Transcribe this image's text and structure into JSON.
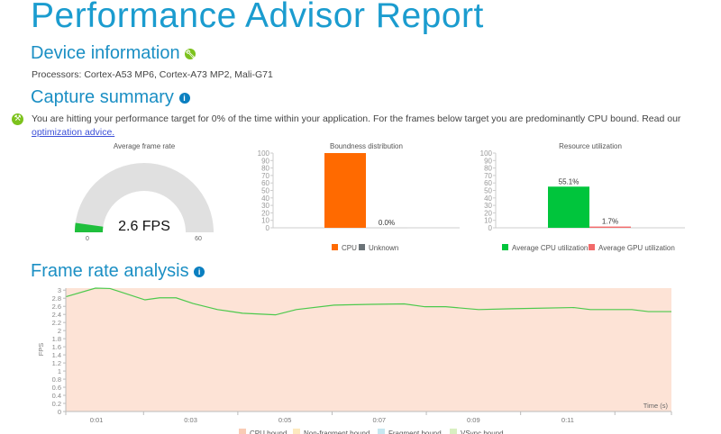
{
  "title": "Performance Advisor Report",
  "device": {
    "heading": "Device information",
    "processors": "Processors: Cortex-A53 MP6, Cortex-A73 MP2, Mali-G71"
  },
  "summary": {
    "heading": "Capture summary",
    "message": "You are hitting your performance target for 0% of the time within your application. For the frames below target you are predominantly CPU bound. Read our",
    "link": "optimization advice."
  },
  "colors": {
    "accent": "#1b9ccf",
    "icon_green": "#7cc21c",
    "info_blue": "#0a7fc0"
  },
  "chart_data": [
    {
      "type": "gauge",
      "title": "Average frame rate",
      "value": 2.6,
      "min": 0,
      "max": 60,
      "min_label": "0",
      "max_label": "60",
      "value_label": "2.6 FPS",
      "color": "#1fbf3c"
    },
    {
      "type": "bar",
      "title": "Boundness distribution",
      "categories": [
        "CPU",
        "Unknown"
      ],
      "values": [
        100,
        0
      ],
      "data_labels": [
        "",
        "0.0%"
      ],
      "colors": [
        "#ff6a00",
        "#6b7378"
      ],
      "ylim": [
        0,
        100
      ],
      "yticks": [
        "0",
        "10",
        "20",
        "30",
        "40",
        "50",
        "60",
        "70",
        "80",
        "90",
        "100"
      ],
      "legend": [
        "CPU",
        "Unknown"
      ]
    },
    {
      "type": "bar",
      "title": "Resource utilization",
      "categories": [
        "Average CPU utilization",
        "Average GPU utilization"
      ],
      "values": [
        55.1,
        1.7
      ],
      "data_labels": [
        "55.1%",
        "1.7%"
      ],
      "colors": [
        "#00c53c",
        "#f26a6a"
      ],
      "ylim": [
        0,
        100
      ],
      "yticks": [
        "0",
        "10",
        "20",
        "30",
        "40",
        "50",
        "60",
        "70",
        "80",
        "90",
        "100"
      ],
      "legend": [
        "Average CPU utilization",
        "Average GPU utilization"
      ]
    },
    {
      "type": "line",
      "title": "Frame rate analysis",
      "ylabel": "FPS",
      "xlabel": "Time (s)",
      "ylim": [
        0,
        3.05
      ],
      "xlim": [
        0.35,
        13.2
      ],
      "yticks": [
        "0",
        "0.2",
        "0.4",
        "0.6",
        "0.8",
        "1",
        "1.2",
        "1.4",
        "1.6",
        "1.8",
        "2",
        "2.2",
        "2.4",
        "2.6",
        "2.8",
        "3"
      ],
      "xticks": [
        "0:01",
        "0:03",
        "0:05",
        "0:07",
        "0:09",
        "0:11"
      ],
      "x": [
        0.36,
        0.98,
        1.29,
        2.03,
        2.34,
        2.69,
        3.05,
        3.57,
        4.1,
        4.8,
        5.24,
        6.04,
        6.82,
        7.53,
        7.97,
        8.41,
        9.11,
        9.81,
        11.13,
        11.48,
        12.36,
        12.71,
        13.2
      ],
      "y": [
        2.84,
        3.05,
        3.04,
        2.76,
        2.81,
        2.81,
        2.67,
        2.52,
        2.43,
        2.39,
        2.52,
        2.63,
        2.65,
        2.66,
        2.59,
        2.59,
        2.52,
        2.54,
        2.57,
        2.52,
        2.52,
        2.47,
        2.47
      ],
      "background": "#fde3d6",
      "line_color": "#4cc94c",
      "legend": [
        {
          "label": "CPU bound",
          "color": "#f9cbb5"
        },
        {
          "label": "Non-fragment bound",
          "color": "#fde9bf"
        },
        {
          "label": "Fragment bound",
          "color": "#c6e7f0"
        },
        {
          "label": "VSync bound",
          "color": "#d9efc1"
        }
      ]
    }
  ]
}
